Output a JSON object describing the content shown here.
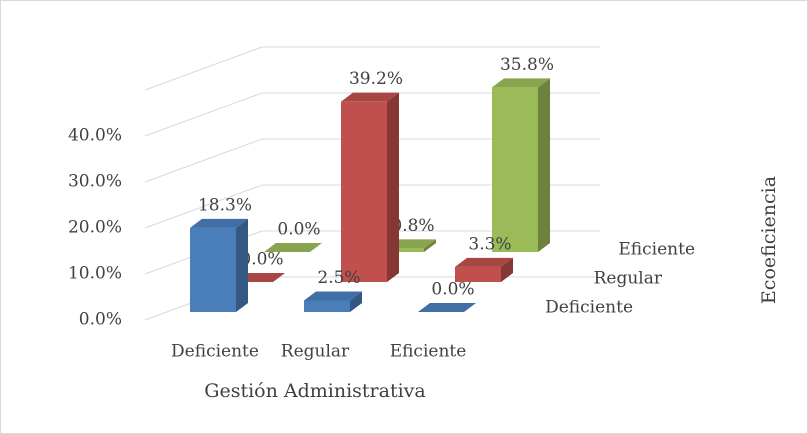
{
  "chart_data": {
    "type": "bar3d",
    "categories": [
      "Deficiente",
      "Regular",
      "Eficiente"
    ],
    "x_label": "Gestión Administrativa",
    "z_label": "Ecoeficiencia",
    "series": [
      {
        "name": "Deficiente",
        "color": "#4a7ebb",
        "values": [
          18.3,
          2.5,
          0.0
        ],
        "value_labels": [
          "18.3%",
          "2.5%",
          "0.0%"
        ]
      },
      {
        "name": "Regular",
        "color": "#c0504d",
        "values": [
          0.0,
          39.2,
          3.3
        ],
        "value_labels": [
          "0.0%",
          "39.2%",
          "3.3%"
        ]
      },
      {
        "name": "Eficiente",
        "color": "#9bbb59",
        "values": [
          0.0,
          0.8,
          35.8
        ],
        "value_labels": [
          "0.0%",
          "0.8%",
          "35.8%"
        ]
      }
    ],
    "ylim": [
      0,
      50
    ],
    "yticks": [
      {
        "value": 0,
        "label": "0.0%"
      },
      {
        "value": 10,
        "label": "10.0%"
      },
      {
        "value": 20,
        "label": "20.0%"
      },
      {
        "value": 30,
        "label": "30.0%"
      },
      {
        "value": 40,
        "label": "40.0%"
      }
    ],
    "grid": true
  }
}
